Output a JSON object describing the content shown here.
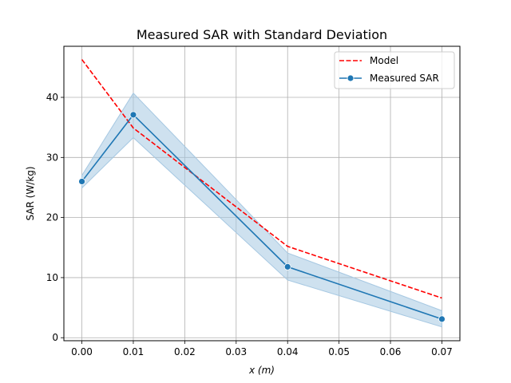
{
  "chart_data": {
    "type": "line",
    "title": "Measured SAR with Standard Deviation",
    "xlabel": "x (m)",
    "ylabel": "SAR (W/kg)",
    "xlim": [
      -0.0035,
      0.0735
    ],
    "ylim": [
      -0.5,
      48.5
    ],
    "xticks": [
      0.0,
      0.01,
      0.02,
      0.03,
      0.04,
      0.05,
      0.06,
      0.07
    ],
    "xtick_labels": [
      "0.00",
      "0.01",
      "0.02",
      "0.03",
      "0.04",
      "0.05",
      "0.06",
      "0.07"
    ],
    "yticks": [
      0,
      10,
      20,
      30,
      40
    ],
    "ytick_labels": [
      "0",
      "10",
      "20",
      "30",
      "40"
    ],
    "grid": true,
    "legend_position": "top-right",
    "series": [
      {
        "name": "Model",
        "style": "dashed",
        "color": "#ff0000",
        "x": [
          0.0,
          0.01,
          0.04,
          0.07
        ],
        "y": [
          46.3,
          34.9,
          15.2,
          6.6
        ]
      },
      {
        "name": "Measured SAR",
        "style": "solid-marker",
        "color": "#1f77b4",
        "x": [
          0.0,
          0.01,
          0.04,
          0.07
        ],
        "y": [
          26.0,
          37.1,
          11.8,
          3.1
        ],
        "band_upper": [
          27.0,
          40.7,
          14.1,
          4.5
        ],
        "band_lower": [
          24.9,
          33.3,
          9.6,
          1.8
        ],
        "band_color": "#a6c8e2"
      }
    ]
  }
}
